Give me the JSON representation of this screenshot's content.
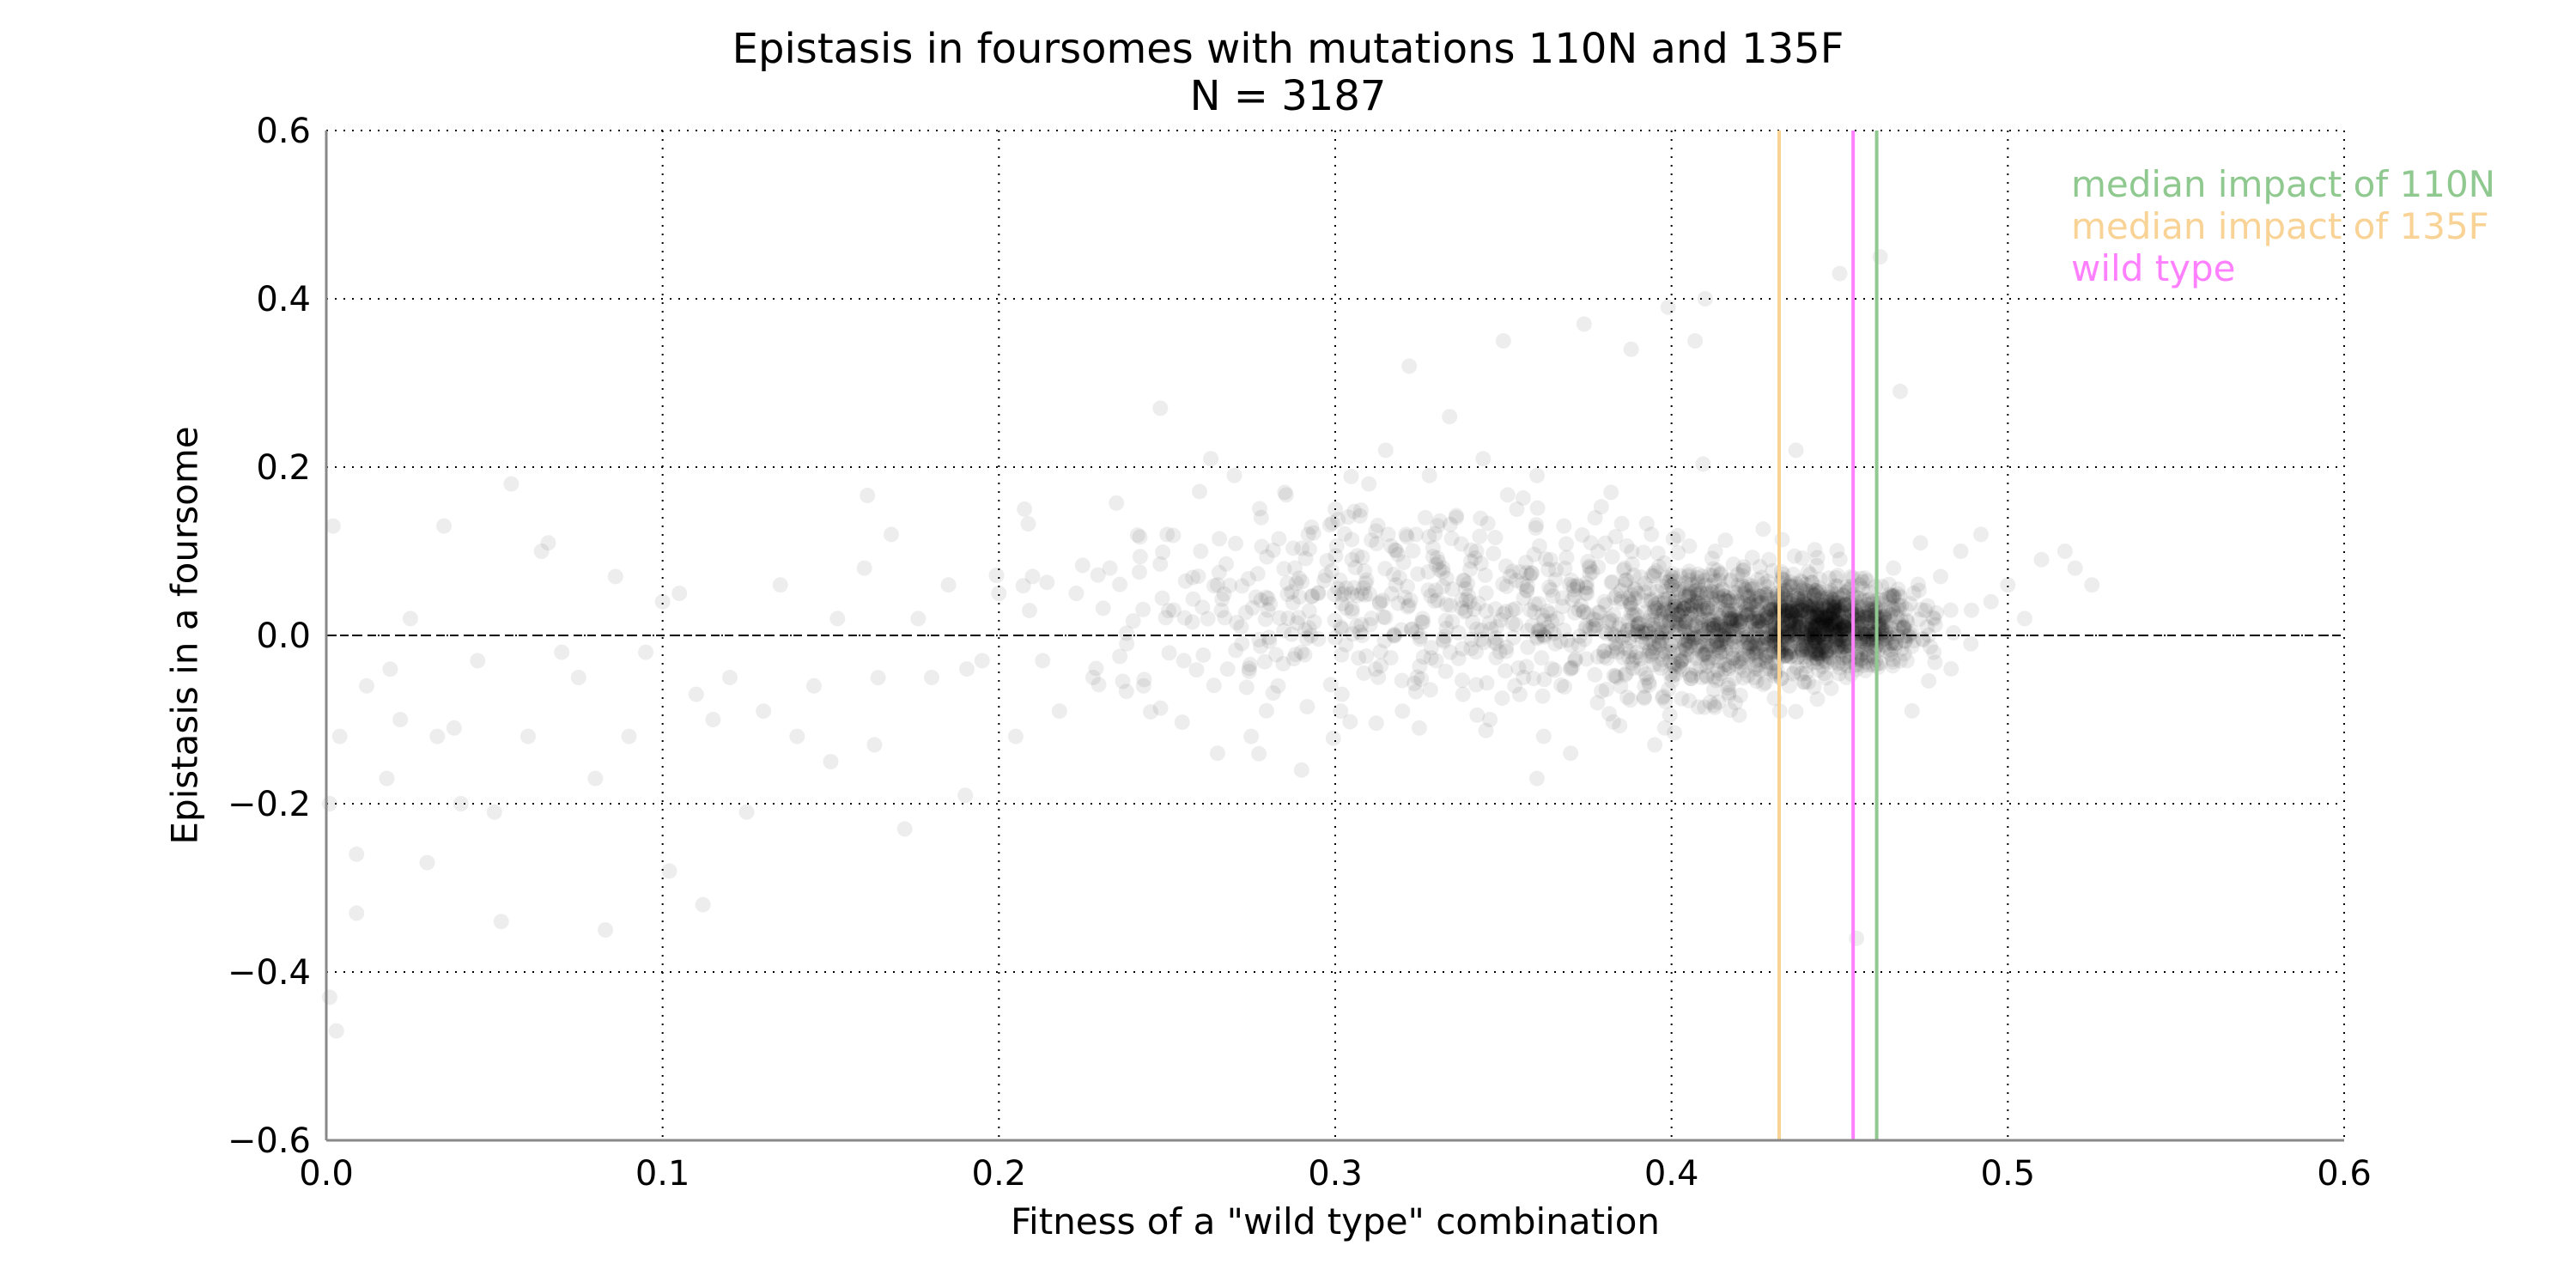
{
  "chart_data": {
    "type": "scatter",
    "title": "Epistasis in foursomes with mutations 110N and 135F",
    "subtitle": "N = 3187",
    "xlabel": "Fitness of a \"wild type\" combination",
    "ylabel": "Epistasis in a foursome",
    "xlim": [
      0.0,
      0.6
    ],
    "ylim": [
      -0.6,
      0.6
    ],
    "xticks": [
      "0.0",
      "0.1",
      "0.2",
      "0.3",
      "0.4",
      "0.5",
      "0.6"
    ],
    "yticks": [
      "−0.6",
      "−0.4",
      "−0.2",
      "0.0",
      "0.2",
      "0.4",
      "0.6"
    ],
    "grid": true,
    "grid_style": "dotted",
    "horizontal_reference_line": 0.0,
    "legend_placement": "top-right",
    "point_color": "#000000",
    "point_alpha": 0.07,
    "vertical_lines": [
      {
        "name": "median impact of 110N",
        "x": 0.461,
        "color": "#8fc98f"
      },
      {
        "name": "median impact of 135F",
        "x": 0.432,
        "color": "#f9d295"
      },
      {
        "name": "wild type",
        "x": 0.454,
        "color": "#ff80ff"
      }
    ],
    "points": [
      [
        0.001,
        -0.43
      ],
      [
        0.001,
        -0.2
      ],
      [
        0.002,
        0.13
      ],
      [
        0.003,
        -0.47
      ],
      [
        0.004,
        -0.12
      ],
      [
        0.009,
        -0.33
      ],
      [
        0.009,
        -0.26
      ],
      [
        0.012,
        -0.06
      ],
      [
        0.018,
        -0.17
      ],
      [
        0.019,
        -0.04
      ],
      [
        0.022,
        -0.1
      ],
      [
        0.025,
        0.02
      ],
      [
        0.03,
        -0.27
      ],
      [
        0.033,
        -0.12
      ],
      [
        0.035,
        0.13
      ],
      [
        0.038,
        -0.11
      ],
      [
        0.04,
        -0.2
      ],
      [
        0.045,
        -0.03
      ],
      [
        0.05,
        -0.21
      ],
      [
        0.052,
        -0.34
      ],
      [
        0.055,
        0.18
      ],
      [
        0.06,
        -0.12
      ],
      [
        0.064,
        0.1
      ],
      [
        0.066,
        0.11
      ],
      [
        0.07,
        -0.02
      ],
      [
        0.075,
        -0.05
      ],
      [
        0.08,
        -0.17
      ],
      [
        0.083,
        -0.35
      ],
      [
        0.086,
        0.07
      ],
      [
        0.09,
        -0.12
      ],
      [
        0.095,
        -0.02
      ],
      [
        0.1,
        0.04
      ],
      [
        0.102,
        -0.28
      ],
      [
        0.105,
        0.05
      ],
      [
        0.11,
        -0.07
      ],
      [
        0.112,
        -0.32
      ],
      [
        0.115,
        -0.1
      ],
      [
        0.12,
        -0.05
      ],
      [
        0.125,
        -0.21
      ],
      [
        0.13,
        -0.09
      ],
      [
        0.135,
        0.06
      ],
      [
        0.14,
        -0.12
      ],
      [
        0.145,
        -0.06
      ],
      [
        0.15,
        -0.15
      ],
      [
        0.152,
        0.02
      ],
      [
        0.16,
        0.08
      ],
      [
        0.163,
        -0.13
      ],
      [
        0.168,
        0.12
      ],
      [
        0.172,
        -0.23
      ],
      [
        0.176,
        0.02
      ],
      [
        0.18,
        -0.05
      ],
      [
        0.185,
        0.06
      ],
      [
        0.19,
        -0.19
      ],
      [
        0.195,
        -0.03
      ],
      [
        0.2,
        0.05
      ],
      [
        0.205,
        -0.12
      ],
      [
        0.21,
        0.07
      ],
      [
        0.213,
        -0.03
      ],
      [
        0.218,
        -0.09
      ],
      [
        0.223,
        0.05
      ],
      [
        0.228,
        -0.05
      ],
      [
        0.233,
        0.08
      ],
      [
        0.238,
        -0.01
      ],
      [
        0.243,
        -0.06
      ],
      [
        0.248,
        0.27
      ],
      [
        0.25,
        0.12
      ],
      [
        0.252,
        0.03
      ],
      [
        0.255,
        -0.03
      ],
      [
        0.26,
        0.1
      ],
      [
        0.263,
        0.21
      ],
      [
        0.265,
        0.06
      ],
      [
        0.268,
        -0.04
      ],
      [
        0.27,
        0.19
      ],
      [
        0.272,
        0.01
      ],
      [
        0.275,
        -0.12
      ],
      [
        0.278,
        0.14
      ],
      [
        0.28,
        0.03
      ],
      [
        0.283,
        -0.06
      ],
      [
        0.285,
        0.17
      ],
      [
        0.288,
        0.08
      ],
      [
        0.29,
        -0.02
      ],
      [
        0.292,
        0.12
      ],
      [
        0.295,
        0.05
      ],
      [
        0.3,
        0.15
      ],
      [
        0.302,
        -0.07
      ],
      [
        0.305,
        0.09
      ],
      [
        0.308,
        0.0
      ],
      [
        0.31,
        0.18
      ],
      [
        0.312,
        -0.04
      ],
      [
        0.315,
        0.22
      ],
      [
        0.318,
        0.06
      ],
      [
        0.32,
        -0.09
      ],
      [
        0.322,
        0.32
      ],
      [
        0.324,
        0.12
      ],
      [
        0.326,
        0.02
      ],
      [
        0.328,
        0.19
      ],
      [
        0.33,
        -0.03
      ],
      [
        0.332,
        0.08
      ],
      [
        0.334,
        0.26
      ],
      [
        0.336,
        0.14
      ],
      [
        0.338,
        -0.07
      ],
      [
        0.34,
        0.04
      ],
      [
        0.342,
        0.1
      ],
      [
        0.344,
        0.21
      ],
      [
        0.346,
        -0.1
      ],
      [
        0.348,
        0.01
      ],
      [
        0.35,
        0.35
      ],
      [
        0.352,
        0.07
      ],
      [
        0.354,
        0.15
      ],
      [
        0.356,
        -0.05
      ],
      [
        0.358,
        0.03
      ],
      [
        0.36,
        0.19
      ],
      [
        0.362,
        -0.12
      ],
      [
        0.364,
        0.09
      ],
      [
        0.366,
        0.02
      ],
      [
        0.368,
        0.13
      ],
      [
        0.37,
        -0.04
      ],
      [
        0.372,
        0.06
      ],
      [
        0.374,
        0.37
      ],
      [
        0.376,
        0.11
      ],
      [
        0.378,
        -0.08
      ],
      [
        0.38,
        0.04
      ],
      [
        0.382,
        0.17
      ],
      [
        0.384,
        -0.02
      ],
      [
        0.386,
        0.08
      ],
      [
        0.388,
        0.34
      ],
      [
        0.39,
        0.01
      ],
      [
        0.392,
        -0.06
      ],
      [
        0.394,
        0.12
      ],
      [
        0.396,
        0.03
      ],
      [
        0.398,
        -0.11
      ],
      [
        0.399,
        0.39
      ],
      [
        0.401,
        0.02
      ],
      [
        0.403,
        -0.03
      ],
      [
        0.405,
        0.07
      ],
      [
        0.407,
        0.35
      ],
      [
        0.409,
        -0.05
      ],
      [
        0.411,
        0.01
      ],
      [
        0.413,
        0.1
      ],
      [
        0.415,
        -0.02
      ],
      [
        0.417,
        0.04
      ],
      [
        0.419,
        -0.08
      ],
      [
        0.421,
        0.0
      ],
      [
        0.423,
        0.06
      ],
      [
        0.425,
        -0.04
      ],
      [
        0.427,
        0.02
      ],
      [
        0.429,
        0.09
      ],
      [
        0.431,
        -0.01
      ],
      [
        0.433,
        0.03
      ],
      [
        0.435,
        -0.06
      ],
      [
        0.437,
        0.22
      ],
      [
        0.438,
        0.01
      ],
      [
        0.44,
        -0.03
      ],
      [
        0.442,
        0.05
      ],
      [
        0.444,
        0.0
      ],
      [
        0.446,
        -0.02
      ],
      [
        0.448,
        0.03
      ],
      [
        0.45,
        0.43
      ],
      [
        0.452,
        -0.05
      ],
      [
        0.454,
        0.02
      ],
      [
        0.456,
        0.06
      ],
      [
        0.458,
        -0.01
      ],
      [
        0.46,
        0.04
      ],
      [
        0.462,
        0.45
      ],
      [
        0.464,
        0.0
      ],
      [
        0.466,
        0.08
      ],
      [
        0.468,
        0.29
      ],
      [
        0.47,
        -0.03
      ],
      [
        0.472,
        0.05
      ],
      [
        0.474,
        0.11
      ],
      [
        0.476,
        0.01
      ],
      [
        0.478,
        -0.02
      ],
      [
        0.48,
        0.07
      ],
      [
        0.483,
        0.03
      ],
      [
        0.486,
        0.1
      ],
      [
        0.489,
        -0.01
      ],
      [
        0.492,
        0.12
      ],
      [
        0.495,
        0.04
      ],
      [
        0.5,
        0.06
      ],
      [
        0.505,
        0.02
      ],
      [
        0.51,
        0.09
      ],
      [
        0.517,
        0.1
      ],
      [
        0.52,
        0.08
      ],
      [
        0.525,
        0.06
      ],
      [
        0.455,
        -0.36
      ],
      [
        0.41,
        0.4
      ],
      [
        0.395,
        -0.13
      ],
      [
        0.37,
        -0.14
      ],
      [
        0.36,
        -0.17
      ],
      [
        0.325,
        -0.11
      ],
      [
        0.29,
        -0.16
      ],
      [
        0.265,
        -0.14
      ]
    ],
    "dense_regions": [
      {
        "x_mean": 0.445,
        "y_mean": 0.01,
        "sd_x": 0.014,
        "sd_y": 0.025
      },
      {
        "x_mean": 0.41,
        "y_mean": 0.01,
        "sd_x": 0.02,
        "sd_y": 0.04
      },
      {
        "x_mean": 0.33,
        "y_mean": 0.04,
        "sd_x": 0.05,
        "sd_y": 0.06
      }
    ]
  }
}
